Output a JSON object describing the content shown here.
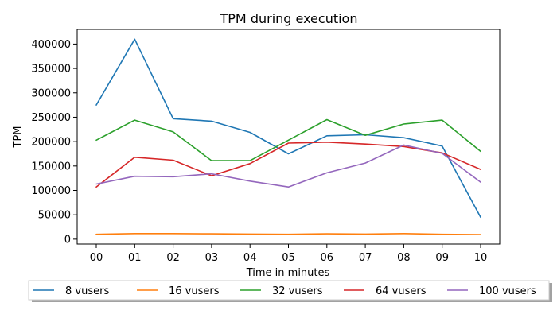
{
  "chart_data": {
    "type": "line",
    "title": "TPM during execution",
    "xlabel": "Time in minutes",
    "ylabel": "TPM",
    "categories": [
      "00",
      "01",
      "02",
      "03",
      "04",
      "05",
      "06",
      "07",
      "08",
      "09",
      "10"
    ],
    "ylim": [
      -10000,
      430000
    ],
    "yticks": [
      0,
      50000,
      100000,
      150000,
      200000,
      250000,
      300000,
      350000,
      400000
    ],
    "grid": false,
    "legend_position": "bottom",
    "series": [
      {
        "name": "8 vusers",
        "color": "#1f77b4",
        "values": [
          275000,
          410000,
          247000,
          242000,
          219000,
          175000,
          212000,
          214000,
          208000,
          191000,
          45000
        ]
      },
      {
        "name": "16 vusers",
        "color": "#ff7f0e",
        "values": [
          10000,
          11500,
          11500,
          11000,
          10500,
          10000,
          11000,
          10500,
          11500,
          10000,
          9500
        ]
      },
      {
        "name": "32 vusers",
        "color": "#2ca02c",
        "values": [
          203000,
          244000,
          220000,
          161000,
          161000,
          203000,
          245000,
          213000,
          236000,
          244000,
          180000
        ]
      },
      {
        "name": "64 vusers",
        "color": "#d62728",
        "values": [
          107000,
          168000,
          162000,
          130000,
          155000,
          197000,
          199000,
          195000,
          190000,
          177000,
          143000
        ]
      },
      {
        "name": "100 vusers",
        "color": "#9467bd",
        "values": [
          113000,
          129000,
          128000,
          134000,
          119000,
          107000,
          136000,
          156000,
          193000,
          176000,
          117000
        ]
      }
    ]
  }
}
